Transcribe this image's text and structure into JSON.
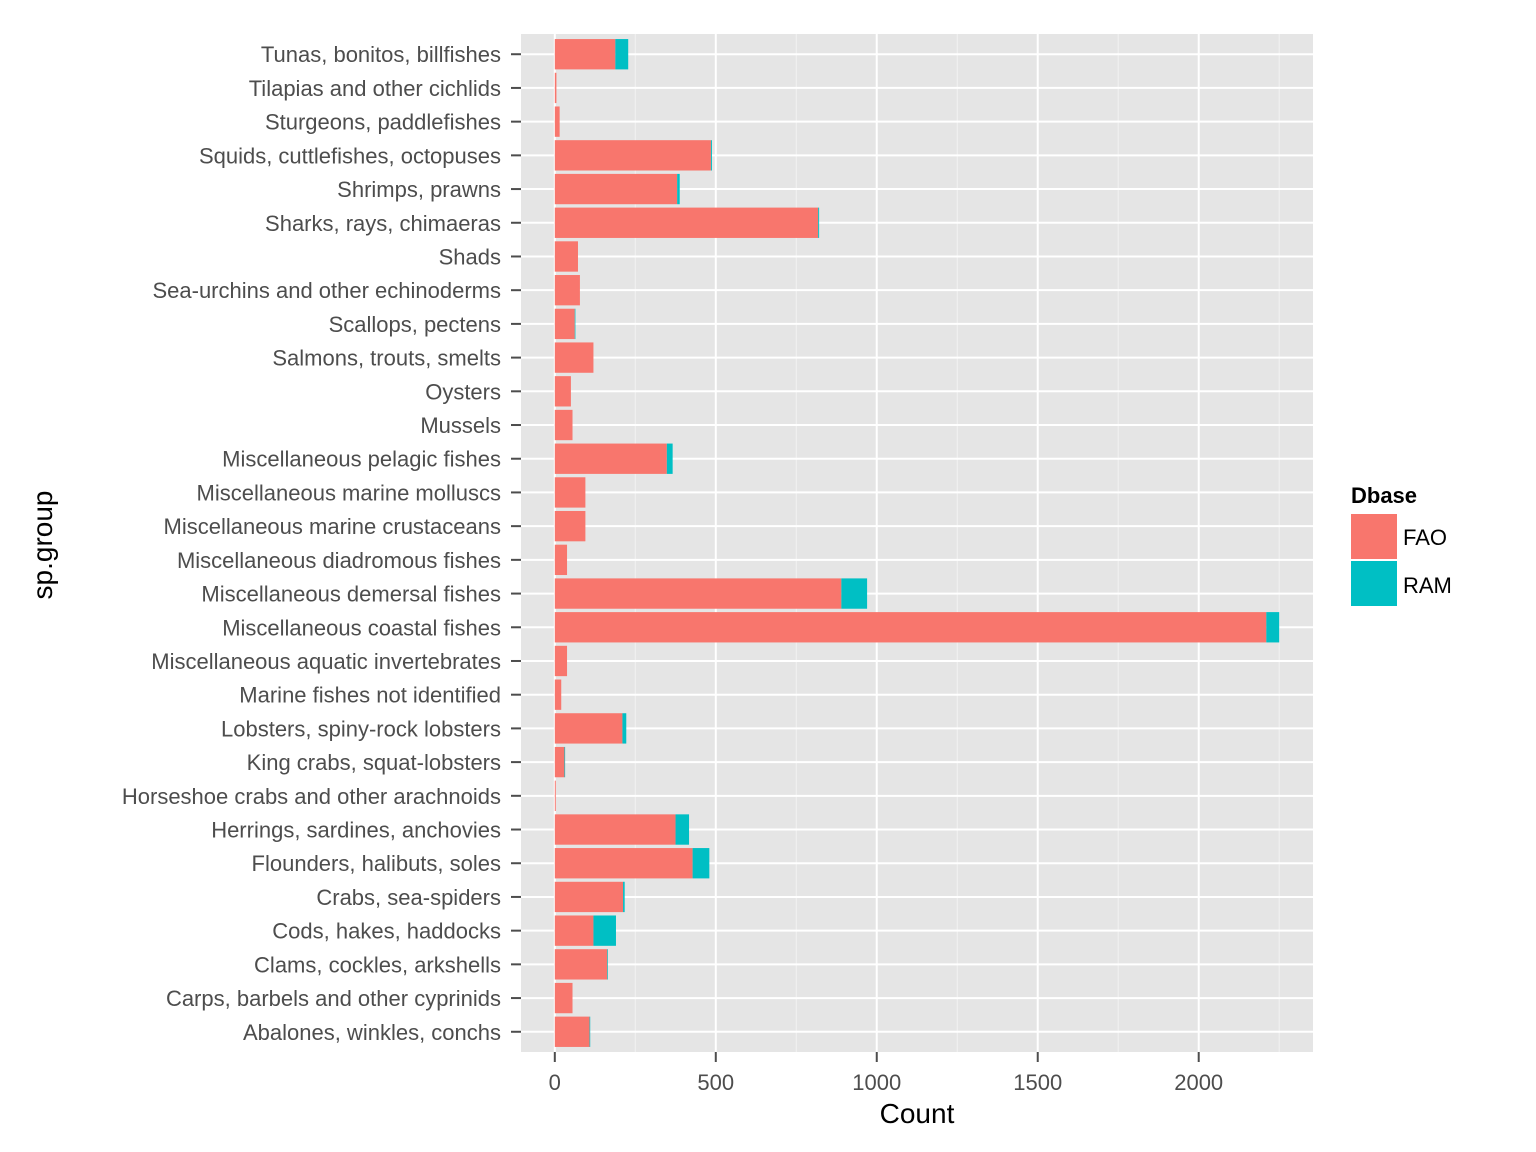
{
  "chart_data": {
    "type": "bar",
    "orientation": "horizontal",
    "stacked": true,
    "xlabel": "Count",
    "ylabel": "sp.group",
    "xlim": [
      -105,
      2355
    ],
    "x_ticks": [
      0,
      500,
      1000,
      1500,
      2000
    ],
    "x_tick_labels": [
      "0",
      "500",
      "1000",
      "1500",
      "2000"
    ],
    "grid": true,
    "legend": {
      "title": "Dbase",
      "position": "right"
    },
    "categories": [
      "Abalones, winkles, conchs",
      "Carps, barbels and other cyprinids",
      "Clams, cockles, arkshells",
      "Cods, hakes, haddocks",
      "Crabs, sea-spiders",
      "Flounders, halibuts, soles",
      "Herrings, sardines, anchovies",
      "Horseshoe crabs and other arachnoids",
      "King crabs, squat-lobsters",
      "Lobsters, spiny-rock lobsters",
      "Marine fishes not identified",
      "Miscellaneous aquatic invertebrates",
      "Miscellaneous coastal fishes",
      "Miscellaneous demersal fishes",
      "Miscellaneous diadromous fishes",
      "Miscellaneous marine crustaceans",
      "Miscellaneous marine molluscs",
      "Miscellaneous pelagic fishes",
      "Mussels",
      "Oysters",
      "Salmons, trouts, smelts",
      "Scallops, pectens",
      "Sea-urchins and other echinoderms",
      "Shads",
      "Sharks, rays, chimaeras",
      "Shrimps, prawns",
      "Squids, cuttlefishes, octopuses",
      "Sturgeons, paddlefishes",
      "Tilapias and other cichlids",
      "Tunas, bonitos, billfishes"
    ],
    "series": [
      {
        "name": "FAO",
        "color": "#F8766D",
        "values": [
          108,
          55,
          163,
          120,
          212,
          428,
          375,
          3,
          30,
          210,
          20,
          38,
          2210,
          890,
          38,
          95,
          95,
          348,
          55,
          50,
          120,
          62,
          78,
          72,
          818,
          380,
          485,
          15,
          5,
          188
        ]
      },
      {
        "name": "RAM",
        "color": "#00BFC4",
        "values": [
          2,
          0,
          2,
          70,
          5,
          52,
          42,
          0,
          2,
          12,
          0,
          0,
          40,
          80,
          0,
          0,
          0,
          18,
          0,
          0,
          0,
          2,
          0,
          0,
          3,
          8,
          3,
          0,
          0,
          40
        ]
      }
    ]
  }
}
